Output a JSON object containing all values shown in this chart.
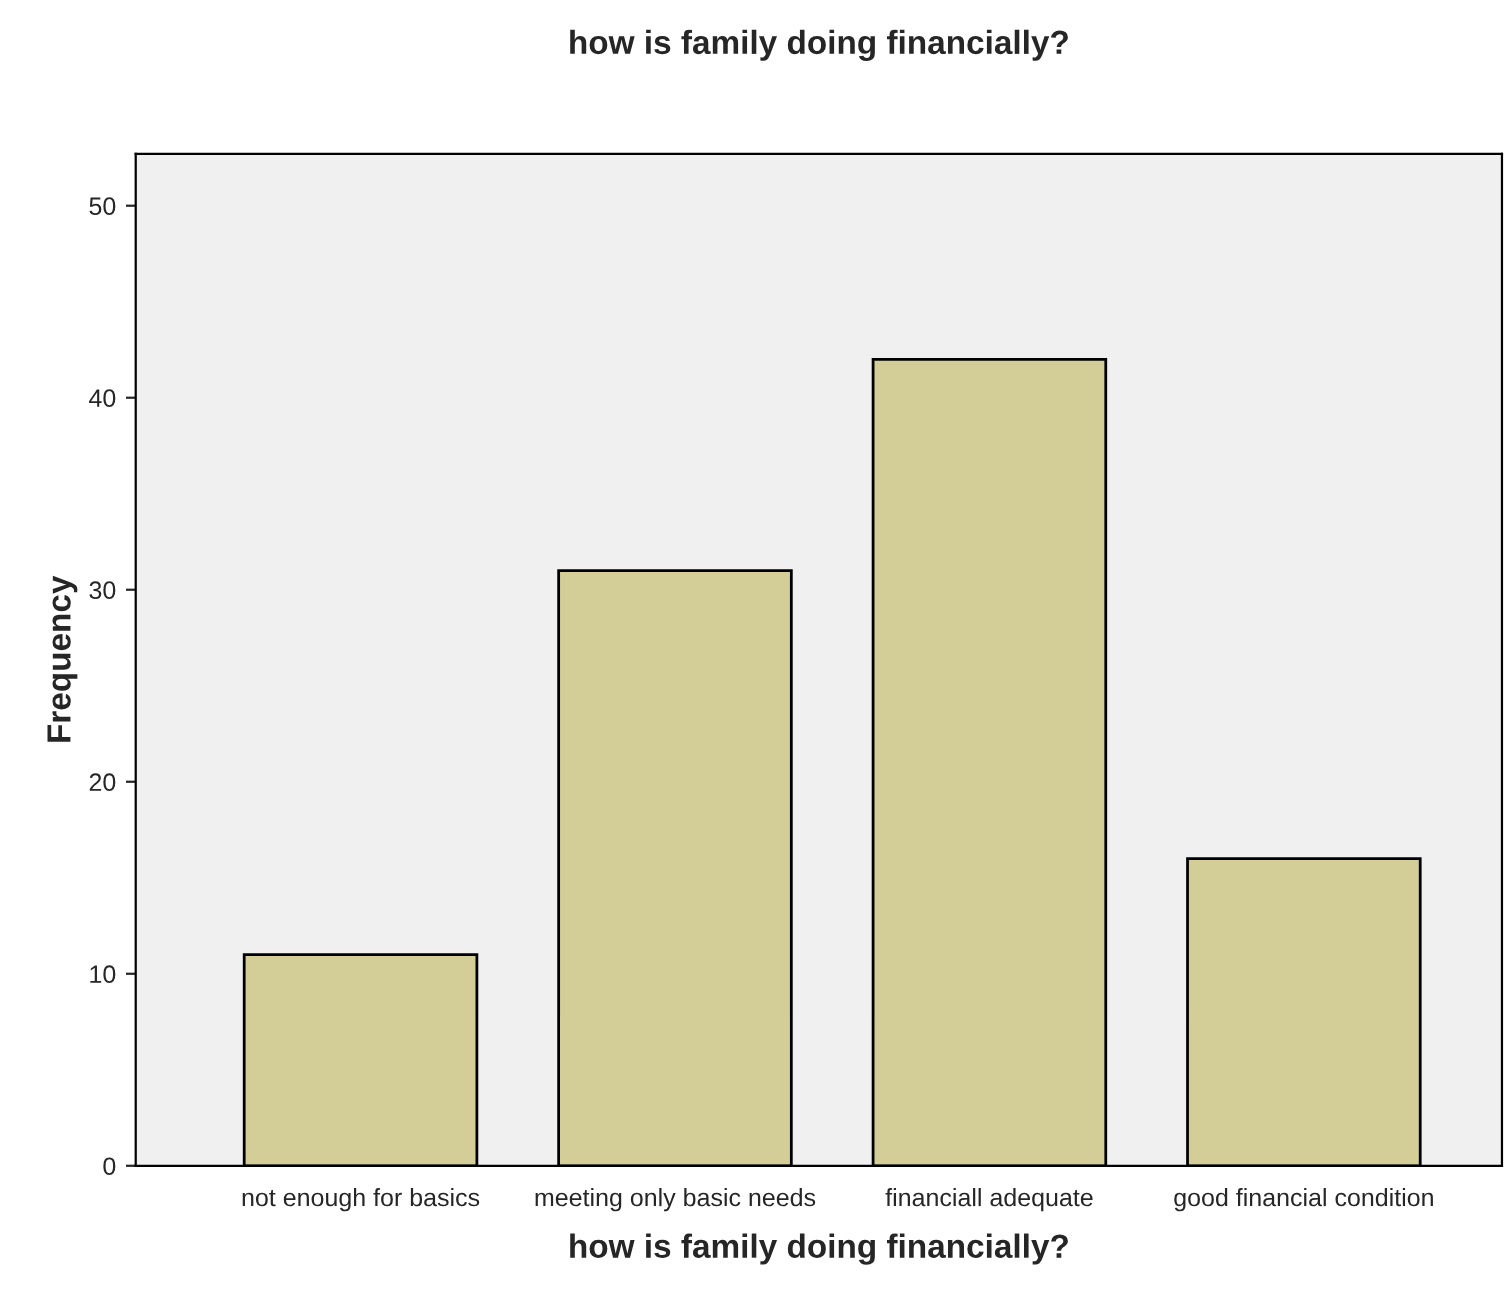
{
  "chart_data": {
    "type": "bar",
    "title": "how is family doing financially?",
    "xlabel": "how is family doing financially?",
    "ylabel": "Frequency",
    "categories": [
      "not enough for basics",
      "meeting only basic needs",
      "financiall adequate",
      "good financial condition"
    ],
    "values": [
      11,
      31,
      42,
      16
    ],
    "color": "#d3ce97",
    "ylim": [
      0,
      52.7
    ],
    "yticks": [
      0,
      10,
      20,
      30,
      40,
      50
    ],
    "grid": false,
    "legend": false
  }
}
